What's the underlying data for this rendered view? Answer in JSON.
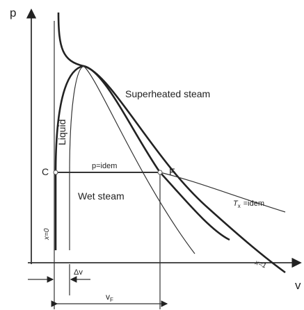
{
  "axes": {
    "y_label": "p",
    "x_label": "v"
  },
  "regions": {
    "liquid": "Liquid",
    "superheated": "Superheated steam",
    "wet": "Wet steam"
  },
  "points": {
    "c": "C",
    "f": "F"
  },
  "labels": {
    "isobar": "p=idem",
    "isotherm_main": "T",
    "isotherm_sub": "x",
    "isotherm_rest": "=idem",
    "x0": "x=0",
    "x1": "x=1",
    "dv": "Δv",
    "vf_main": "v",
    "vf_sub": "F"
  }
}
